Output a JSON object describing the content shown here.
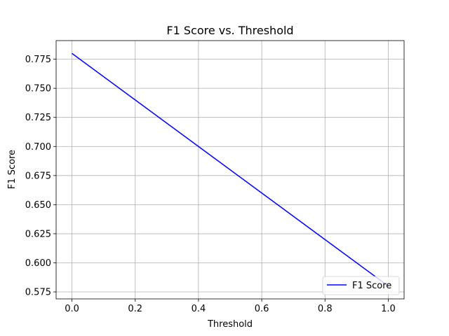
{
  "chart_data": {
    "type": "line",
    "title": "F1 Score vs. Threshold",
    "xlabel": "Threshold",
    "ylabel": "F1 Score",
    "xlim": [
      -0.05,
      1.05
    ],
    "ylim": [
      0.569,
      0.791
    ],
    "x_ticks": [
      0.0,
      0.2,
      0.4,
      0.6,
      0.8,
      1.0
    ],
    "x_tick_labels": [
      "0.0",
      "0.2",
      "0.4",
      "0.6",
      "0.8",
      "1.0"
    ],
    "y_ticks": [
      0.575,
      0.6,
      0.625,
      0.65,
      0.675,
      0.7,
      0.725,
      0.75,
      0.775
    ],
    "y_tick_labels": [
      "0.575",
      "0.600",
      "0.625",
      "0.650",
      "0.675",
      "0.700",
      "0.725",
      "0.750",
      "0.775"
    ],
    "grid": true,
    "legend_position": "lower-right",
    "series": [
      {
        "name": "F1 Score",
        "color": "#0000ff",
        "x": [
          0.0,
          0.2,
          0.4,
          0.6,
          0.8,
          1.0
        ],
        "y": [
          0.78,
          0.74,
          0.7,
          0.66,
          0.62,
          0.58
        ]
      }
    ]
  }
}
